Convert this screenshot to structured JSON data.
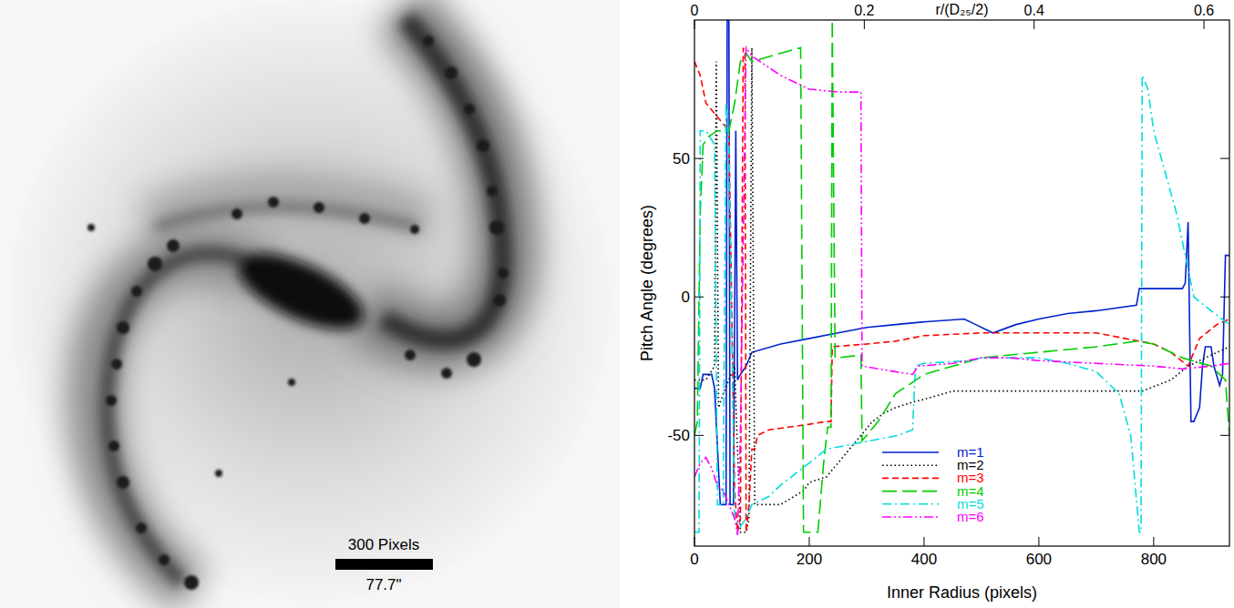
{
  "image": {
    "scale_bar_label": "300 Pixels",
    "scale_bar_arcsec_label": "77.7\""
  },
  "chart_data": {
    "type": "line",
    "x_label": "Inner Radius (pixels)",
    "y_label": "Pitch Angle (degrees)",
    "x2_label": "r/(D₂₅/2)",
    "xlim": [
      0,
      932
    ],
    "xticks": [
      0,
      200,
      400,
      600,
      800
    ],
    "x2lim": [
      0,
      0.63
    ],
    "x2ticks": [
      0,
      0.2,
      0.4,
      0.6
    ],
    "ylim": [
      -90,
      100
    ],
    "yticks": [
      -50,
      0,
      50
    ],
    "legend": "lower center",
    "series": [
      {
        "name": "m=1",
        "color": "#0022cc",
        "line_style": "solid",
        "x": [
          0,
          10,
          15,
          30,
          35,
          45,
          55,
          57,
          60,
          62,
          68,
          72,
          75,
          80,
          90,
          100,
          150,
          200,
          250,
          300,
          350,
          400,
          470,
          490,
          520,
          560,
          600,
          650,
          700,
          770,
          775,
          850,
          855,
          860,
          865,
          870,
          880,
          885,
          890,
          900,
          905,
          915,
          920,
          925,
          932
        ],
        "values": [
          -33,
          -33,
          -28,
          -28,
          -33,
          -75,
          -75,
          100,
          100,
          -75,
          -75,
          60,
          -30,
          -28,
          -25,
          -20,
          -17,
          -15,
          -13,
          -11,
          -10,
          -9,
          -8,
          -10,
          -13,
          -10,
          -8,
          -6,
          -5,
          -3,
          3,
          3,
          5,
          27,
          -45,
          -45,
          -40,
          -25,
          -18,
          -18,
          -25,
          -32,
          -28,
          15,
          15
        ]
      },
      {
        "name": "m=2",
        "color": "#000000",
        "line_style": "dotted",
        "x": [
          0,
          20,
          35,
          38,
          42,
          50,
          60,
          70,
          80,
          90,
          95,
          100,
          105,
          110,
          150,
          190,
          200,
          230,
          250,
          270,
          290,
          310,
          330,
          350,
          380,
          400,
          450,
          500,
          640,
          700,
          780,
          830,
          860,
          890,
          932
        ],
        "values": [
          -30,
          -30,
          -25,
          85,
          -40,
          -35,
          -30,
          -25,
          -85,
          -85,
          -80,
          90,
          -75,
          -75,
          -75,
          -70,
          -67,
          -65,
          -60,
          -55,
          -50,
          -45,
          -42,
          -40,
          -38,
          -37,
          -34,
          -34,
          -34,
          -34,
          -34,
          -30,
          -25,
          -22,
          -18
        ]
      },
      {
        "name": "m=3",
        "color": "#ff0000",
        "line_style": "dashed",
        "x": [
          0,
          10,
          20,
          40,
          60,
          70,
          75,
          80,
          85,
          88,
          90,
          95,
          100,
          105,
          110,
          130,
          200,
          230,
          238,
          240,
          300,
          350,
          400,
          500,
          600,
          700,
          750,
          800,
          830,
          860,
          880,
          910,
          932
        ],
        "values": [
          85,
          80,
          70,
          65,
          60,
          -70,
          -85,
          -80,
          90,
          88,
          -85,
          -75,
          -55,
          -55,
          -50,
          -48,
          -46,
          -45,
          -45,
          -18,
          -17,
          -16,
          -14,
          -13,
          -13,
          -13,
          -15,
          -17,
          -20,
          -25,
          -15,
          -10,
          -8
        ]
      },
      {
        "name": "m=4",
        "color": "#00cc00",
        "line_style": "long-dash",
        "x": [
          0,
          5,
          10,
          15,
          25,
          40,
          60,
          70,
          80,
          90,
          100,
          150,
          185,
          190,
          200,
          215,
          225,
          232,
          238,
          240,
          245,
          250,
          290,
          292,
          300,
          320,
          350,
          400,
          450,
          500,
          600,
          700,
          770,
          800,
          850,
          900,
          925,
          932
        ],
        "values": [
          -50,
          -45,
          30,
          55,
          58,
          60,
          60,
          70,
          85,
          88,
          85,
          88,
          90,
          -85,
          -85,
          -85,
          -60,
          -47,
          -47,
          100,
          -22,
          -22,
          -21,
          -52,
          -50,
          -45,
          -35,
          -28,
          -25,
          -22,
          -20,
          -18,
          -16,
          -17,
          -22,
          -25,
          -30,
          -50
        ]
      },
      {
        "name": "m=5",
        "color": "#00dddd",
        "line_style": "dash-dot",
        "x": [
          0,
          8,
          10,
          20,
          35,
          40,
          50,
          55,
          60,
          70,
          80,
          90,
          100,
          130,
          150,
          200,
          230,
          280,
          355,
          380,
          385,
          400,
          480,
          500,
          600,
          650,
          700,
          740,
          760,
          775,
          778,
          780,
          790,
          800,
          820,
          840,
          860,
          870,
          900,
          932
        ],
        "values": [
          -85,
          -85,
          60,
          60,
          55,
          -75,
          -75,
          70,
          55,
          -80,
          -83,
          -80,
          -75,
          -72,
          -68,
          -60,
          -55,
          -53,
          -50,
          -48,
          -25,
          -24,
          -23,
          -22,
          -22,
          -24,
          -27,
          -35,
          -50,
          -85,
          -85,
          80,
          75,
          60,
          45,
          30,
          10,
          0,
          -5,
          -10
        ]
      },
      {
        "name": "m=6",
        "color": "#ff00ff",
        "line_style": "dash-dot-dot",
        "x": [
          0,
          10,
          20,
          30,
          40,
          50,
          60,
          70,
          75,
          80,
          90,
          100,
          150,
          200,
          250,
          290,
          292,
          350,
          380,
          390,
          450,
          500,
          550,
          600,
          700,
          800,
          850,
          900,
          932
        ],
        "values": [
          -65,
          -60,
          -58,
          -62,
          -68,
          -70,
          -75,
          -80,
          -86,
          -50,
          90,
          87,
          80,
          75,
          74,
          74,
          -25,
          -27,
          -28,
          -25,
          -24,
          -22,
          -22,
          -23,
          -24,
          -25,
          -26,
          -25,
          -24
        ]
      }
    ]
  }
}
